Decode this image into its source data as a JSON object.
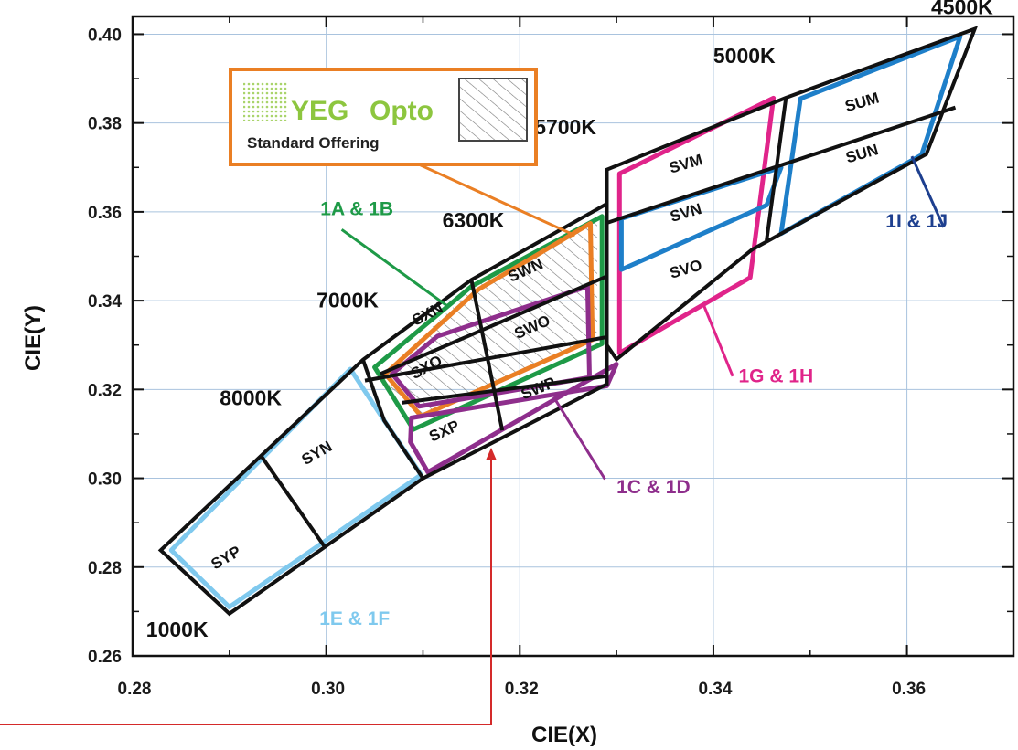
{
  "chart_data": {
    "type": "region-map",
    "xlabel": "CIE(X)",
    "ylabel": "CIE(Y)",
    "xlim": [
      0.28,
      0.371
    ],
    "ylim": [
      0.26,
      0.404
    ],
    "x_ticks": [
      {
        "value": 0.28,
        "label": "0.28"
      },
      {
        "value": 0.3,
        "label": "0.30"
      },
      {
        "value": 0.32,
        "label": "0.32"
      },
      {
        "value": 0.34,
        "label": "0.34"
      },
      {
        "value": 0.36,
        "label": "0.36"
      }
    ],
    "y_ticks": [
      {
        "value": 0.26,
        "label": "0.26"
      },
      {
        "value": 0.28,
        "label": "0.28"
      },
      {
        "value": 0.3,
        "label": "0.30"
      },
      {
        "value": 0.32,
        "label": "0.32"
      },
      {
        "value": 0.34,
        "label": "0.34"
      },
      {
        "value": 0.36,
        "label": "0.36"
      },
      {
        "value": 0.38,
        "label": "0.38"
      },
      {
        "value": 0.4,
        "label": "0.40"
      }
    ],
    "grid": true,
    "cct_labels": [
      {
        "text": "4500K",
        "x": 0.3625,
        "y": 0.4045
      },
      {
        "text": "5000K",
        "x": 0.34,
        "y": 0.3935
      },
      {
        "text": "5700K",
        "x": 0.3215,
        "y": 0.3775
      },
      {
        "text": "6300K",
        "x": 0.312,
        "y": 0.3565
      },
      {
        "text": "7000K",
        "x": 0.299,
        "y": 0.3385
      },
      {
        "text": "8000K",
        "x": 0.289,
        "y": 0.3165
      },
      {
        "text": "1000K",
        "x": 0.2814,
        "y": 0.2643
      }
    ],
    "bins": [
      {
        "name": "SUM",
        "x": 0.3555,
        "y": 0.3836,
        "rotate": -16
      },
      {
        "name": "SUN",
        "x": 0.3555,
        "y": 0.372,
        "rotate": -16
      },
      {
        "name": "SVM",
        "x": 0.3373,
        "y": 0.3697,
        "rotate": -16
      },
      {
        "name": "SVN",
        "x": 0.3373,
        "y": 0.3587,
        "rotate": -16
      },
      {
        "name": "SVO",
        "x": 0.3373,
        "y": 0.346,
        "rotate": -16
      },
      {
        "name": "SWN",
        "x": 0.3208,
        "y": 0.3458,
        "rotate": -24
      },
      {
        "name": "SWO",
        "x": 0.3215,
        "y": 0.333,
        "rotate": -24
      },
      {
        "name": "SWP",
        "x": 0.3221,
        "y": 0.3192,
        "rotate": -22
      },
      {
        "name": "SXN",
        "x": 0.3107,
        "y": 0.336,
        "rotate": -28
      },
      {
        "name": "SXO",
        "x": 0.3106,
        "y": 0.324,
        "rotate": -28
      },
      {
        "name": "SXP",
        "x": 0.3124,
        "y": 0.3096,
        "rotate": -24
      },
      {
        "name": "SYN",
        "x": 0.2993,
        "y": 0.3047,
        "rotate": -30
      },
      {
        "name": "SYP",
        "x": 0.2899,
        "y": 0.2811,
        "rotate": -30
      }
    ],
    "groups": [
      {
        "name": "1A & 1B",
        "color": "#1e9a47",
        "label_x": 0.2994,
        "label_y": 0.3593
      },
      {
        "name": "1C & 1D",
        "color": "#8e2e8c",
        "label_x": 0.33,
        "label_y": 0.2966
      },
      {
        "name": "1E & 1F",
        "color": "#7fc9ee",
        "label_x": 0.2993,
        "label_y": 0.267
      },
      {
        "name": "1G & 1H",
        "color": "#e0248a",
        "label_x": 0.3426,
        "label_y": 0.3216
      },
      {
        "name": "1I & 1J",
        "color": "#1d3f8f",
        "label_x": 0.3578,
        "label_y": 0.3565
      }
    ],
    "legend": {
      "brand": "YEG",
      "brand_suffix": "Opto",
      "subtitle": "Standard Offering",
      "placement": "top-left",
      "brand_color": "#8dc63f",
      "border_color": "#ea7f24"
    }
  }
}
